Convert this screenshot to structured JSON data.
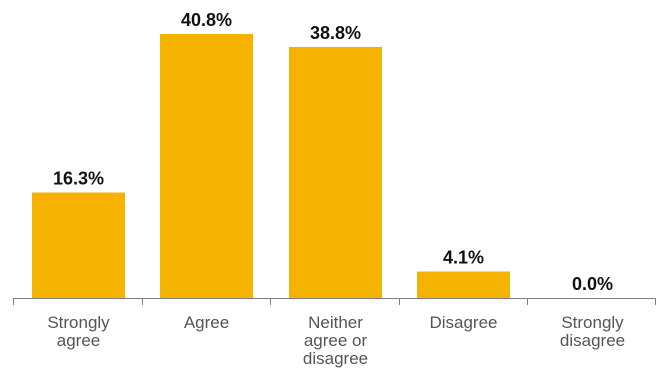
{
  "chart_data": {
    "type": "bar",
    "categories": [
      [
        "Strongly",
        "agree"
      ],
      [
        "Agree"
      ],
      [
        "Neither",
        "agree or",
        "disagree"
      ],
      [
        "Disagree"
      ],
      [
        "Strongly",
        "disagree"
      ]
    ],
    "values": [
      16.3,
      40.8,
      38.8,
      4.1,
      0.0
    ],
    "data_labels": [
      "16.3%",
      "40.8%",
      "38.8%",
      "4.1%",
      "0.0%"
    ],
    "title": "",
    "xlabel": "",
    "ylabel": "",
    "ylim": [
      0,
      40.8
    ],
    "grid": false,
    "legend": "none",
    "colors": {
      "bar": "#F5B300",
      "axis": "#7f7f7f",
      "value_text": "#111111",
      "category_text": "#555555"
    }
  }
}
